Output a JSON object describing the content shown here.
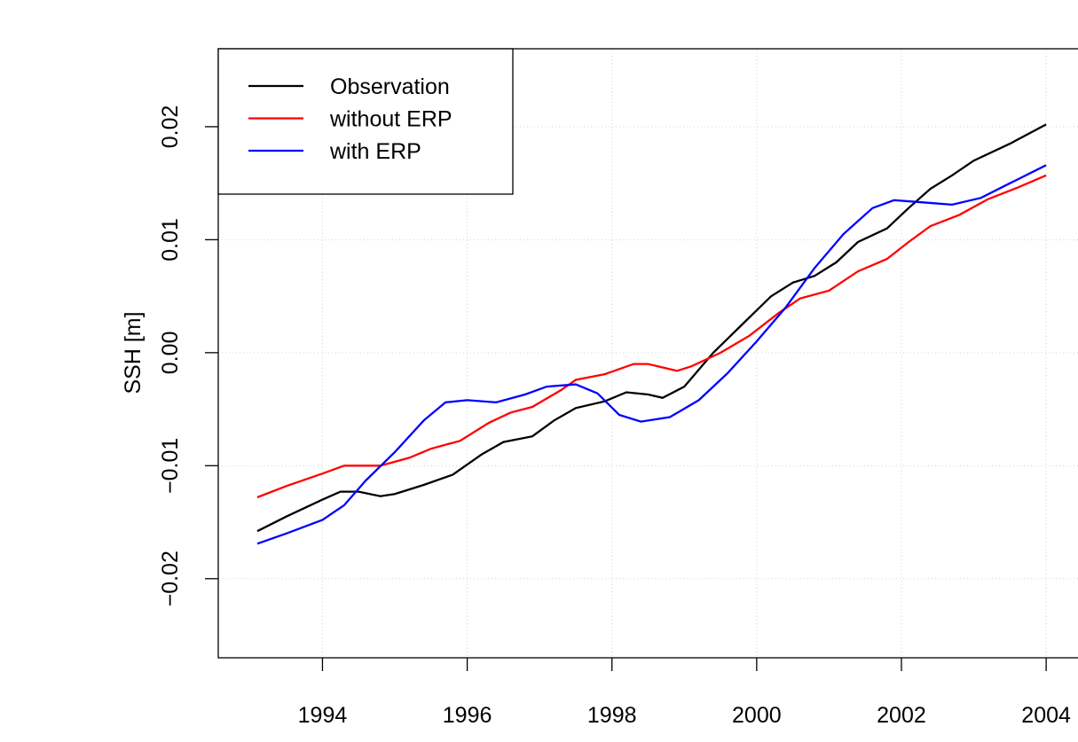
{
  "chart_data": {
    "type": "line",
    "ylabel": "SSH [m]",
    "xlim": [
      1992.56,
      2004.44
    ],
    "ylim": [
      -0.027,
      0.0269
    ],
    "xticks": [
      1994,
      1996,
      1998,
      2000,
      2002,
      2004
    ],
    "yticks": [
      {
        "value": -0.02,
        "label": "−0.02"
      },
      {
        "value": -0.01,
        "label": "−0.01"
      },
      {
        "value": 0,
        "label": "0.00"
      },
      0.01,
      0.02
    ],
    "grid": true,
    "legend": "top-left",
    "series": [
      {
        "name": "Observation",
        "color": "#000000",
        "x": [
          1993.1,
          1993.5,
          1994,
          1994.25,
          1994.5,
          1994.8,
          1995,
          1995.4,
          1995.8,
          1996.2,
          1996.5,
          1996.9,
          1997.2,
          1997.5,
          1997.9,
          1998.2,
          1998.5,
          1998.7,
          1999,
          1999.4,
          1999.8,
          2000.2,
          2000.5,
          2000.8,
          2001.1,
          2001.4,
          2001.8,
          2002.1,
          2002.4,
          2002.7,
          2003,
          2003.5,
          2004
        ],
        "values": [
          -0.0158,
          -0.0145,
          -0.013,
          -0.0123,
          -0.0123,
          -0.0127,
          -0.0125,
          -0.0117,
          -0.0108,
          -0.009,
          -0.0079,
          -0.0074,
          -0.006,
          -0.0049,
          -0.0043,
          -0.0035,
          -0.0037,
          -0.004,
          -0.003,
          0.0,
          0.0025,
          0.005,
          0.0062,
          0.0068,
          0.008,
          0.0098,
          0.011,
          0.0128,
          0.0145,
          0.0157,
          0.017,
          0.0185,
          0.0202
        ]
      },
      {
        "name": "without ERP",
        "color": "#ff0000",
        "x": [
          1993.1,
          1993.5,
          1994,
          1994.3,
          1994.8,
          1995.2,
          1995.5,
          1995.9,
          1996.3,
          1996.6,
          1996.9,
          1997.3,
          1997.5,
          1997.9,
          1998.3,
          1998.5,
          1998.9,
          1999.1,
          1999.5,
          1999.9,
          2000.3,
          2000.6,
          2001,
          2001.4,
          2001.8,
          2002.1,
          2002.4,
          2002.8,
          2003.2,
          2003.6,
          2004
        ],
        "values": [
          -0.0128,
          -0.0118,
          -0.0107,
          -0.01,
          -0.01,
          -0.0093,
          -0.0085,
          -0.0078,
          -0.0062,
          -0.0053,
          -0.0048,
          -0.0033,
          -0.0024,
          -0.0019,
          -0.001,
          -0.001,
          -0.0016,
          -0.0012,
          0.0,
          0.0015,
          0.0035,
          0.0048,
          0.0055,
          0.0072,
          0.0083,
          0.0098,
          0.0112,
          0.0122,
          0.0136,
          0.0146,
          0.0157
        ]
      },
      {
        "name": "with ERP",
        "color": "#0000ff",
        "x": [
          1993.1,
          1993.5,
          1994,
          1994.3,
          1994.6,
          1995,
          1995.4,
          1995.7,
          1996,
          1996.4,
          1996.8,
          1997.1,
          1997.5,
          1997.8,
          1998.1,
          1998.4,
          1998.8,
          1999.2,
          1999.6,
          2000,
          2000.4,
          2000.8,
          2001.2,
          2001.6,
          2001.9,
          2002.3,
          2002.7,
          2003.1,
          2003.5,
          2004
        ],
        "values": [
          -0.0169,
          -0.016,
          -0.0148,
          -0.0135,
          -0.0113,
          -0.0088,
          -0.006,
          -0.0044,
          -0.0042,
          -0.0044,
          -0.0037,
          -0.003,
          -0.0028,
          -0.0036,
          -0.0055,
          -0.0061,
          -0.0057,
          -0.0042,
          -0.0018,
          0.001,
          0.004,
          0.0075,
          0.0105,
          0.0128,
          0.0135,
          0.0133,
          0.0131,
          0.0137,
          0.015,
          0.0166
        ]
      }
    ]
  }
}
